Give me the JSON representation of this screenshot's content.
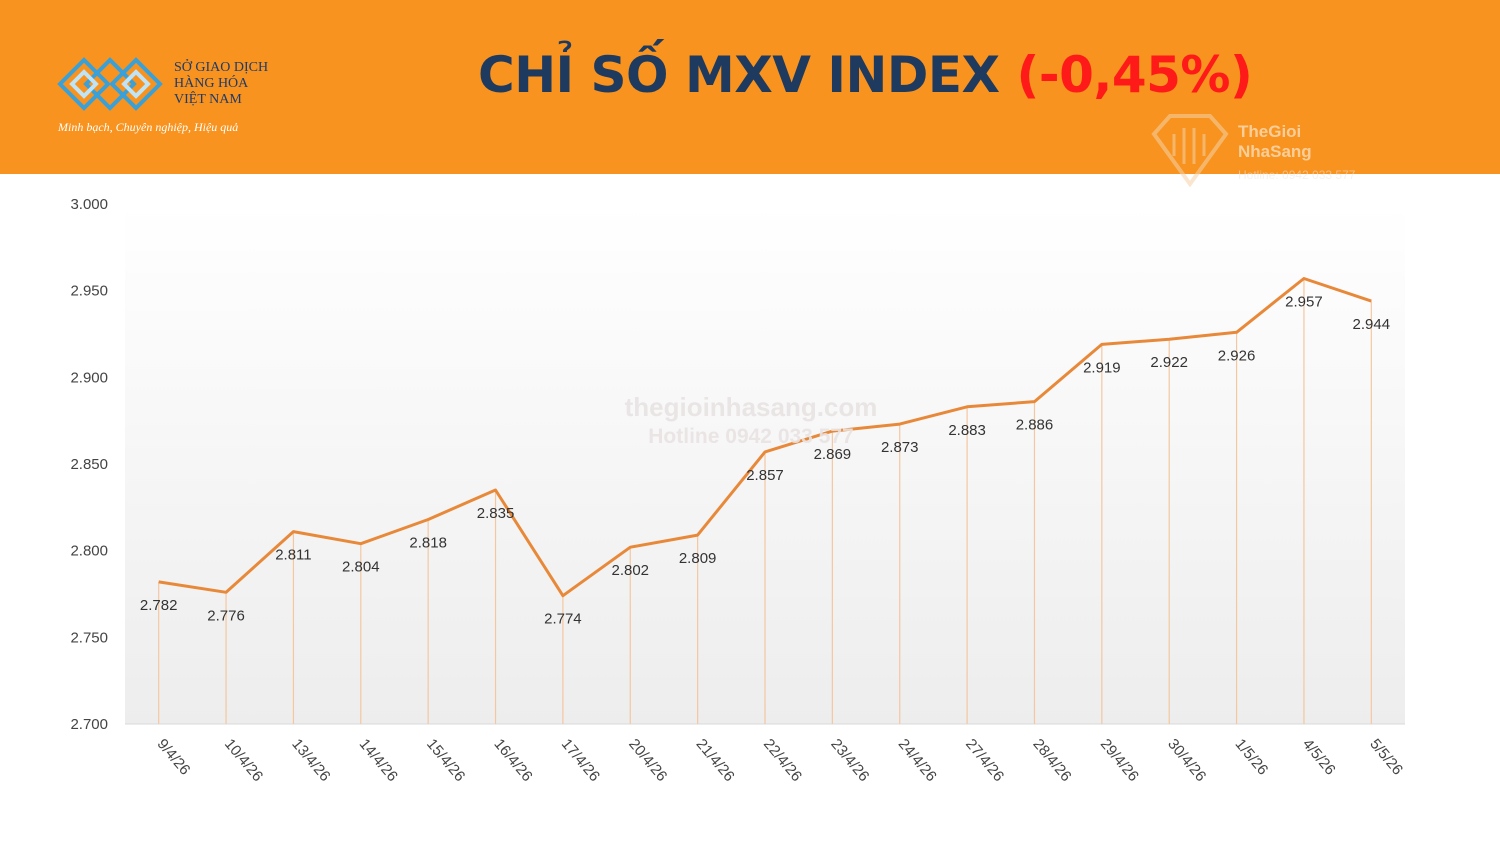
{
  "header": {
    "title": "CHỈ SỐ MXV INDEX",
    "change": "(-0,45%)",
    "logo_lines": [
      "SỞ GIAO DỊCH",
      "HÀNG HÓA",
      "VIỆT NAM"
    ],
    "slogan": "Minh bạch, Chuyên nghiệp, Hiệu quả",
    "brand_color": "#F7931E",
    "change_color": "#FF1A1A"
  },
  "watermark": {
    "brand_lines": [
      "TheGioi",
      "NhaSang"
    ],
    "hotline": "Hotline: 0942 033 577",
    "site": "thegioinhasang.com",
    "site_hotline": "Hotline 0942 033 577"
  },
  "chart_data": {
    "type": "line",
    "categories": [
      "9/4/26",
      "10/4/26",
      "13/4/26",
      "14/4/26",
      "15/4/26",
      "16/4/26",
      "17/4/26",
      "20/4/26",
      "21/4/26",
      "22/4/26",
      "23/4/26",
      "24/4/26",
      "27/4/26",
      "28/4/26",
      "29/4/26",
      "30/4/26",
      "1/5/26",
      "4/5/26",
      "5/5/26"
    ],
    "values": [
      2782,
      2776,
      2811,
      2804,
      2818,
      2835,
      2774,
      2802,
      2809,
      2857,
      2869,
      2873,
      2883,
      2886,
      2919,
      2922,
      2926,
      2957,
      2944
    ],
    "data_labels": [
      "2.782",
      "2.776",
      "2.811",
      "2.804",
      "2.818",
      "2.835",
      "2.774",
      "2.802",
      "2.809",
      "2.857",
      "2.869",
      "2.873",
      "2.883",
      "2.886",
      "2.919",
      "2.922",
      "2.926",
      "2.957",
      "2.944"
    ],
    "y_ticks": [
      "2.700",
      "2.750",
      "2.800",
      "2.850",
      "2.900",
      "2.950",
      "3.000"
    ],
    "ylim": [
      2700,
      3000
    ],
    "line_color": "#E8893A",
    "drop_lines": true,
    "grid": false,
    "legend": "none"
  }
}
